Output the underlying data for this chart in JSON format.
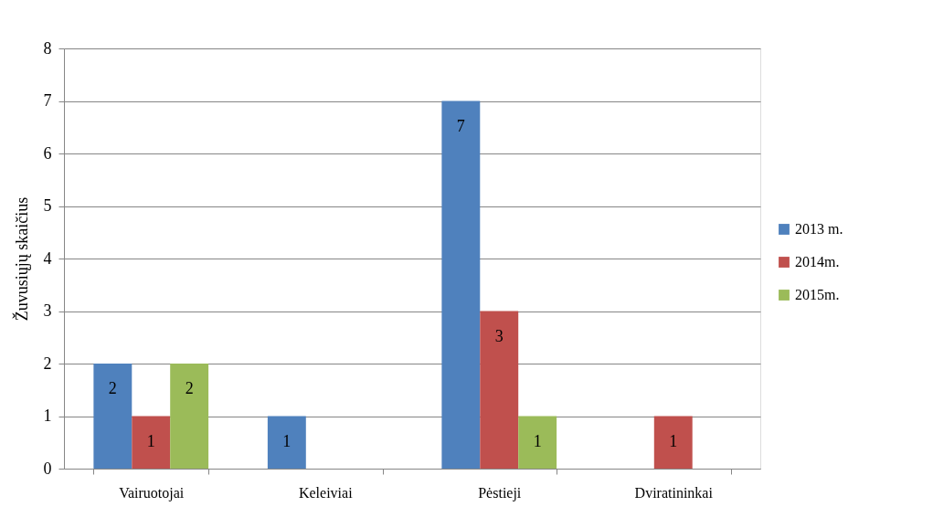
{
  "chart_data": {
    "type": "bar",
    "ylabel": "Žuvusiųjų skaičius",
    "categories": [
      "Vairuotojai",
      "Keleiviai",
      "Pėstieji",
      "Dviratininkai"
    ],
    "series": [
      {
        "name": "2013 m.",
        "color": "#4f81bd",
        "values": [
          2,
          1,
          7,
          null
        ]
      },
      {
        "name": "2014m.",
        "color": "#c0504d",
        "values": [
          1,
          null,
          3,
          1
        ]
      },
      {
        "name": "2015m.",
        "color": "#9bbb59",
        "values": [
          2,
          null,
          1,
          null
        ]
      }
    ],
    "ylim": [
      0,
      8
    ],
    "yticks": [
      0,
      1,
      2,
      3,
      4,
      5,
      6,
      7,
      8
    ],
    "grid": "y",
    "legend": "right",
    "data_labels": true
  }
}
